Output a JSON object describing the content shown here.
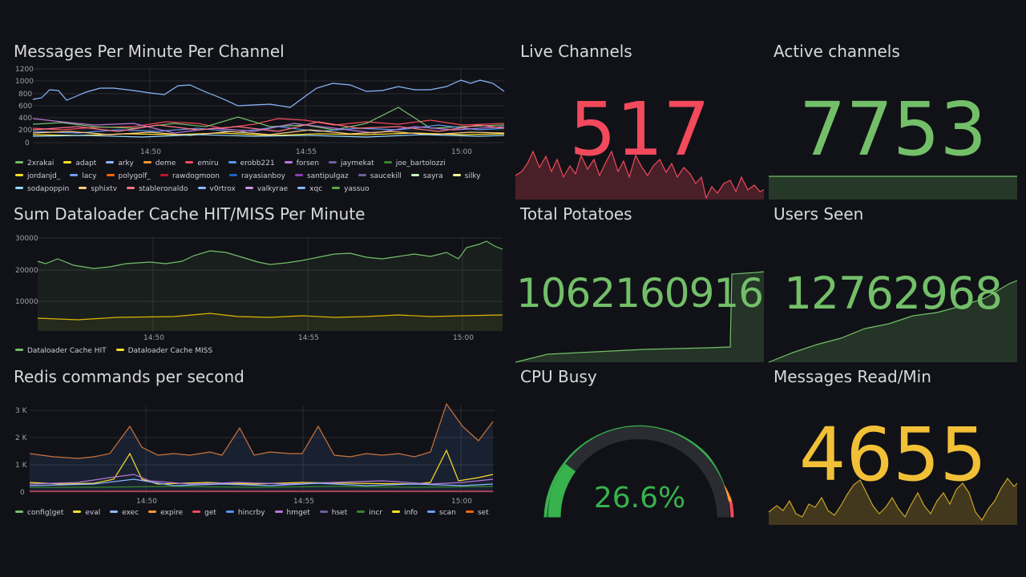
{
  "panels": {
    "messages_per_minute": {
      "title": "Messages Per Minute Per Channel",
      "y_ticks": [
        "1200",
        "1000",
        "800",
        "600",
        "400",
        "200",
        "0"
      ],
      "x_ticks": [
        "14:50",
        "14:55",
        "15:00"
      ],
      "legend": [
        {
          "name": "2xrakai",
          "color": "#73bf69"
        },
        {
          "name": "adapt",
          "color": "#fade2a"
        },
        {
          "name": "arky",
          "color": "#8ab8ff"
        },
        {
          "name": "deme",
          "color": "#ff9830"
        },
        {
          "name": "emiru",
          "color": "#f2495c"
        },
        {
          "name": "erobb221",
          "color": "#5794f2"
        },
        {
          "name": "forsen",
          "color": "#b877d9"
        },
        {
          "name": "jaymekat",
          "color": "#705da0"
        },
        {
          "name": "joe_bartolozzi",
          "color": "#37872d"
        },
        {
          "name": "jordanjd_",
          "color": "#fade2a"
        },
        {
          "name": "lacy",
          "color": "#6e9fff"
        },
        {
          "name": "polygolf_",
          "color": "#fa6400"
        },
        {
          "name": "rawdogmoon",
          "color": "#c4162a"
        },
        {
          "name": "rayasianboy",
          "color": "#1f60c4"
        },
        {
          "name": "santipulgaz",
          "color": "#8f3bb8"
        },
        {
          "name": "saucekill",
          "color": "#705da0"
        },
        {
          "name": "sayra",
          "color": "#c8f2c2"
        },
        {
          "name": "silky",
          "color": "#fff899"
        },
        {
          "name": "sodapoppin",
          "color": "#97d8ff"
        },
        {
          "name": "sphixtv",
          "color": "#ffcb7d"
        },
        {
          "name": "stableronaldo",
          "color": "#ff7383"
        },
        {
          "name": "v0rtrox",
          "color": "#8ab8ff"
        },
        {
          "name": "valkyrae",
          "color": "#ca95e5"
        },
        {
          "name": "xqc",
          "color": "#8ab8ff"
        },
        {
          "name": "yassuo",
          "color": "#56a64b"
        }
      ]
    },
    "dataloader_cache": {
      "title": "Sum Dataloader Cache HIT/MISS Per Minute",
      "y_ticks": [
        "30000",
        "20000",
        "10000"
      ],
      "x_ticks": [
        "14:50",
        "14:55",
        "15:00"
      ],
      "legend": [
        {
          "name": "Dataloader Cache HIT",
          "color": "#73bf69"
        },
        {
          "name": "Dataloader Cache MISS",
          "color": "#fade2a"
        }
      ]
    },
    "redis_commands": {
      "title": "Redis commands per second",
      "y_ticks": [
        "3 K",
        "2 K",
        "1 K",
        "0"
      ],
      "x_ticks": [
        "14:50",
        "14:55",
        "15:00"
      ],
      "legend": [
        {
          "name": "config|get",
          "color": "#73bf69"
        },
        {
          "name": "eval",
          "color": "#fade2a"
        },
        {
          "name": "exec",
          "color": "#8ab8ff"
        },
        {
          "name": "expire",
          "color": "#ff9830"
        },
        {
          "name": "get",
          "color": "#f2495c"
        },
        {
          "name": "hincrby",
          "color": "#5794f2"
        },
        {
          "name": "hmget",
          "color": "#b877d9"
        },
        {
          "name": "hset",
          "color": "#705da0"
        },
        {
          "name": "incr",
          "color": "#37872d"
        },
        {
          "name": "info",
          "color": "#fade2a"
        },
        {
          "name": "scan",
          "color": "#6e9fff"
        },
        {
          "name": "set",
          "color": "#fa6400"
        }
      ]
    },
    "live_channels": {
      "title": "Live Channels",
      "value": "517",
      "color": "#f2495c"
    },
    "active_channels": {
      "title": "Active channels",
      "value": "7753",
      "color": "#73bf69"
    },
    "total_potatoes": {
      "title": "Total Potatoes",
      "value": "1062160916",
      "color": "#73bf69"
    },
    "users_seen": {
      "title": "Users Seen",
      "value": "12762968",
      "color": "#73bf69"
    },
    "cpu_busy": {
      "title": "CPU Busy",
      "value": "26.6%",
      "percent": 26.6,
      "color": "#37b24d"
    },
    "messages_read": {
      "title": "Messages Read/Min",
      "value": "4655",
      "color": "#f2c037"
    }
  }
}
